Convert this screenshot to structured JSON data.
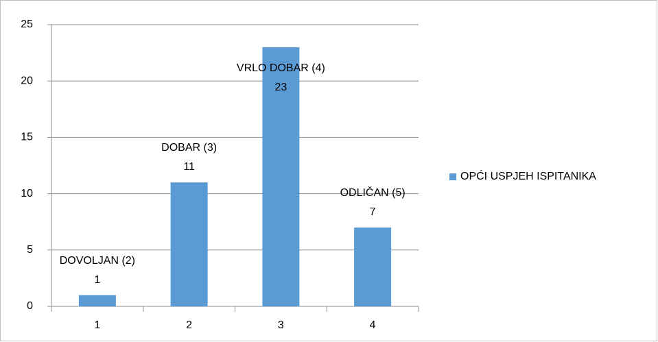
{
  "chart_data": {
    "type": "bar",
    "categories": [
      "1",
      "2",
      "3",
      "4"
    ],
    "series": [
      {
        "name": "OPĆI USPJEH ISPITANIKA",
        "color": "#5b9bd5",
        "values": [
          1,
          11,
          23,
          7
        ]
      }
    ],
    "point_labels": [
      "DOVOLJAN (2)",
      "DOBAR (3)",
      "VRLO DOBAR (4)",
      "ODLIČAN (5)"
    ],
    "ylim": [
      0,
      25
    ],
    "yticks": [
      0,
      5,
      10,
      15,
      20,
      25
    ],
    "grid": true,
    "legend": "right"
  }
}
